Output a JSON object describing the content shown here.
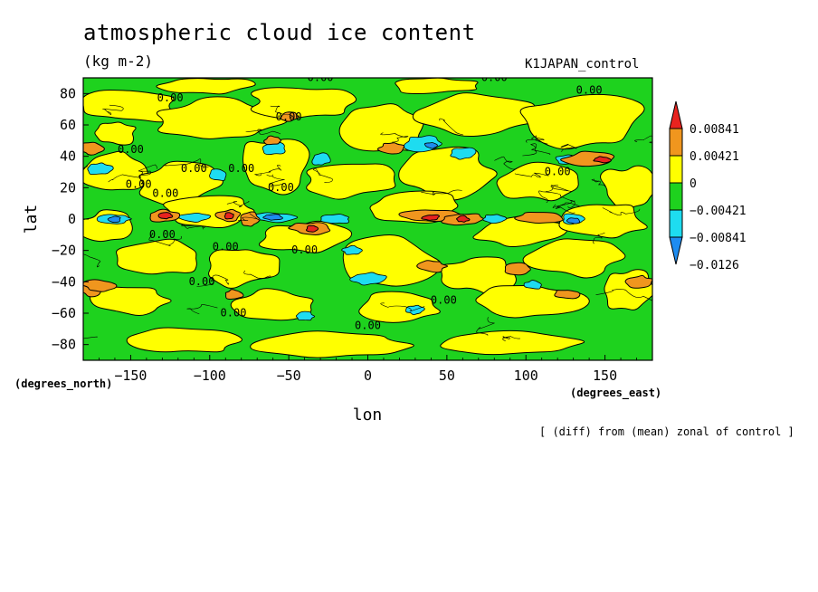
{
  "title": "atmospheric cloud ice content",
  "units": "(kg m-2)",
  "run_label": "K1JAPAN_control",
  "note": "[ (diff) from (mean) zonal of control ]",
  "chart_data": {
    "type": "heatmap",
    "title": "atmospheric cloud ice content",
    "units": "(kg m-2)",
    "xlabel": "lon",
    "ylabel": "lat",
    "x_units": "(degrees_east)",
    "y_units": "(degrees_north)",
    "xlim": [
      -180,
      180
    ],
    "ylim": [
      -90,
      90
    ],
    "xticks": [
      -150,
      -100,
      -50,
      0,
      50,
      100,
      150
    ],
    "yticks": [
      -80,
      -60,
      -40,
      -20,
      0,
      20,
      40,
      60,
      80
    ],
    "contour_label": "0.00",
    "colorbar": {
      "levels": [
        "0.00841",
        "0.00421",
        "0",
        "-0.00421",
        "-0.00841",
        "-0.0126"
      ],
      "colors": [
        "#e8231f",
        "#f0961e",
        "#ffff00",
        "#1ed21e",
        "#1edcf0",
        "#1e8cf0"
      ]
    },
    "grid": false
  }
}
